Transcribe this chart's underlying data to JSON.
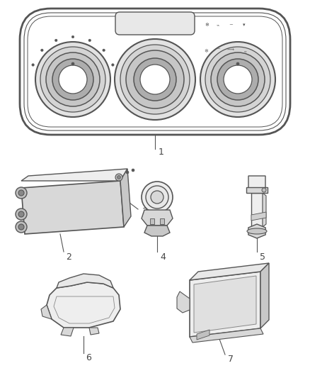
{
  "background_color": "#ffffff",
  "line_color": "#555555",
  "light_line_color": "#888888",
  "fill_light": "#eeeeee",
  "fill_mid": "#d8d8d8",
  "fill_dark": "#bbbbbb",
  "label_color": "#444444",
  "label_fontsize": 9
}
